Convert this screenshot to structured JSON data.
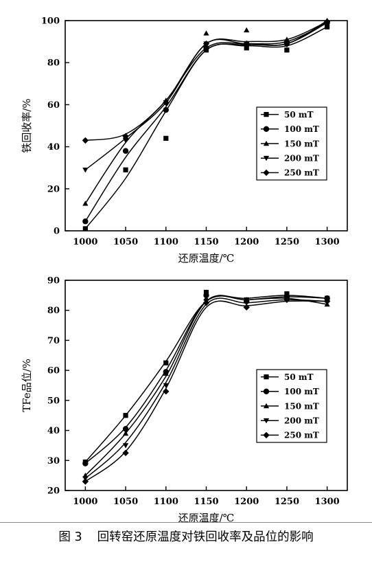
{
  "caption": {
    "label": "图 3",
    "text": "回转窑还原温度对铁回收率及品位的影响"
  },
  "chart_data": [
    {
      "type": "line",
      "title": "",
      "xlabel": "还原温度/℃",
      "ylabel": "铁回收率/%",
      "x": [
        1000,
        1050,
        1100,
        1150,
        1200,
        1250,
        1300
      ],
      "xticks": [
        "1000",
        "1050",
        "1100",
        "1150",
        "1200",
        "1250",
        "1300"
      ],
      "yticks": [
        "0",
        "20",
        "40",
        "60",
        "80",
        "100"
      ],
      "xlim": [
        975,
        1325
      ],
      "ylim": [
        0,
        100
      ],
      "legend_position": "right",
      "series": [
        {
          "name": "50 mT",
          "marker": "square",
          "values": [
            1,
            29,
            44,
            86,
            87,
            86,
            97
          ],
          "curve": [
            1,
            25,
            57,
            86,
            88,
            88,
            97
          ]
        },
        {
          "name": "100 mT",
          "marker": "circle",
          "values": [
            4.5,
            38,
            57.5,
            87,
            89,
            89,
            99
          ],
          "curve": [
            4.5,
            35,
            59,
            86,
            88.5,
            89,
            99
          ]
        },
        {
          "name": "150 mT",
          "marker": "triangle-up",
          "values": [
            13,
            45,
            62,
            94,
            95.5,
            91,
            100
          ],
          "curve": [
            13,
            42,
            62,
            87,
            89,
            89,
            100
          ]
        },
        {
          "name": "200 mT",
          "marker": "triangle-down",
          "values": [
            29,
            43,
            61,
            89,
            88,
            88.5,
            99
          ],
          "curve": [
            29,
            44,
            61,
            89,
            89,
            90,
            99
          ]
        },
        {
          "name": "250 mT",
          "marker": "diamond",
          "values": [
            43,
            45,
            61,
            89,
            89,
            90,
            99.5
          ],
          "curve": [
            43,
            46,
            62,
            89,
            90,
            91,
            99.5
          ]
        }
      ]
    },
    {
      "type": "line",
      "title": "",
      "xlabel": "还原温度/℃",
      "ylabel": "TFe品位/%",
      "x": [
        1000,
        1050,
        1100,
        1150,
        1200,
        1250,
        1300
      ],
      "xticks": [
        "1000",
        "1050",
        "1100",
        "1150",
        "1200",
        "1250",
        "1300"
      ],
      "yticks": [
        "20",
        "30",
        "40",
        "50",
        "60",
        "70",
        "80",
        "90"
      ],
      "xlim": [
        975,
        1325
      ],
      "ylim": [
        20,
        90
      ],
      "legend_position": "right",
      "series": [
        {
          "name": "50 mT",
          "marker": "square",
          "values": [
            29.5,
            45,
            62.5,
            86,
            83.5,
            85.5,
            84
          ],
          "curve": [
            29.5,
            45,
            63,
            83,
            84,
            85,
            84
          ]
        },
        {
          "name": "100 mT",
          "marker": "circle",
          "values": [
            29,
            40.5,
            59.5,
            85,
            83,
            84.5,
            84
          ],
          "curve": [
            29,
            41,
            60,
            83,
            83.5,
            84.5,
            84
          ]
        },
        {
          "name": "150 mT",
          "marker": "triangle-up",
          "values": [
            25,
            39,
            59,
            84,
            83.5,
            84.5,
            82
          ],
          "curve": [
            25,
            39,
            58,
            83,
            83.5,
            84,
            82
          ]
        },
        {
          "name": "200 mT",
          "marker": "triangle-down",
          "values": [
            24,
            35,
            55,
            83,
            82.5,
            83.5,
            83
          ],
          "curve": [
            24,
            36,
            56,
            82,
            82.5,
            83.5,
            83
          ]
        },
        {
          "name": "250 mT",
          "marker": "diamond",
          "values": [
            23,
            32.5,
            53,
            82.5,
            81,
            83.5,
            83
          ],
          "curve": [
            23,
            33,
            54,
            81,
            81.5,
            83,
            83
          ]
        }
      ]
    }
  ]
}
